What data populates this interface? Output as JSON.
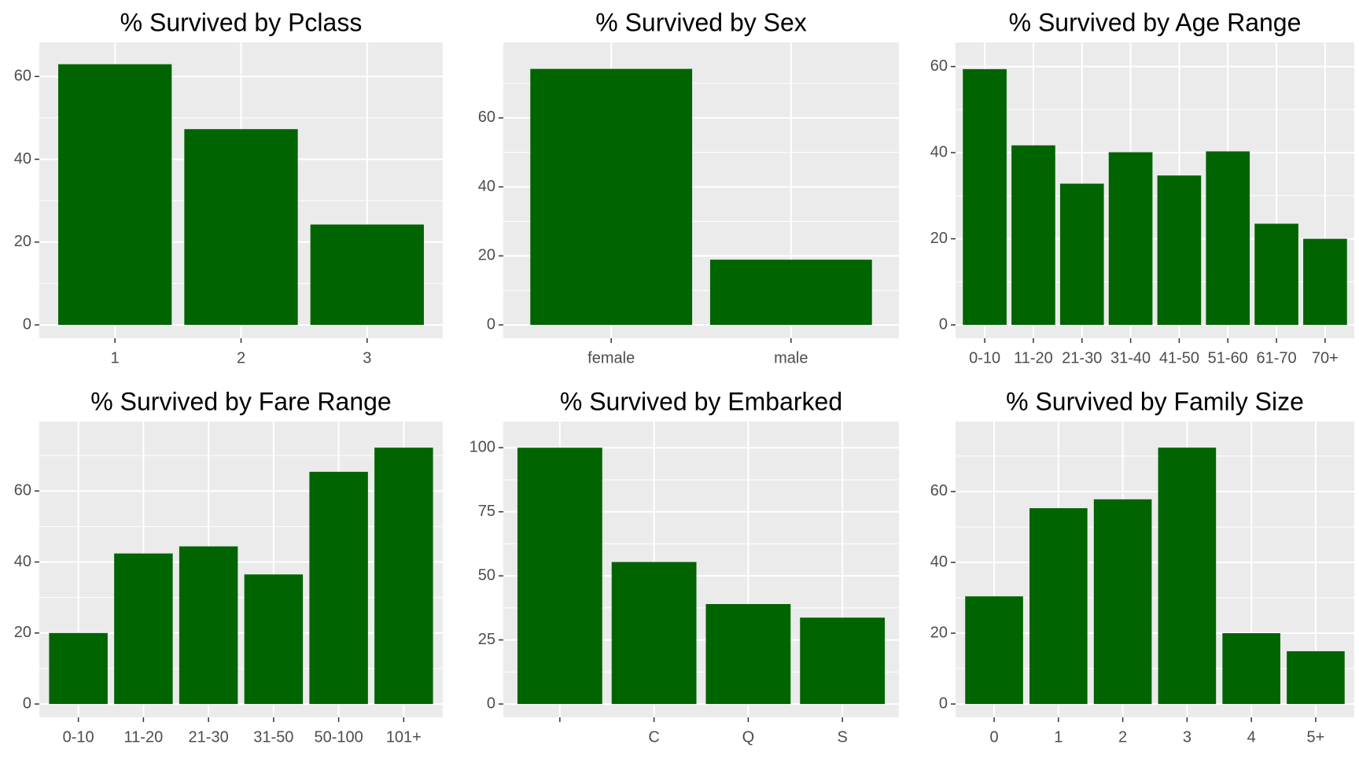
{
  "colors": {
    "bar": "#006400",
    "panel": "#ebebeb",
    "grid": "#ffffff",
    "text": "#000000",
    "tick": "#4d4d4d"
  },
  "chart_data": [
    {
      "type": "bar",
      "title": "% Survived by Pclass",
      "categories": [
        "1",
        "2",
        "3"
      ],
      "values": [
        62.96,
        47.28,
        24.24
      ],
      "ylim": [
        0,
        65
      ],
      "yticks": [
        0,
        20,
        40,
        60
      ],
      "grid": true
    },
    {
      "type": "bar",
      "title": "% Survived by Sex",
      "categories": [
        "female",
        "male"
      ],
      "values": [
        74.2,
        18.9
      ],
      "ylim": [
        0,
        78
      ],
      "yticks": [
        0,
        20,
        40,
        60
      ],
      "grid": true
    },
    {
      "type": "bar",
      "title": "% Survived by Age Range",
      "categories": [
        "0-10",
        "11-20",
        "21-30",
        "31-40",
        "41-50",
        "51-60",
        "61-70",
        "70+"
      ],
      "values": [
        59.4,
        41.7,
        32.8,
        40.1,
        34.7,
        40.3,
        23.5,
        20.0
      ],
      "ylim": [
        0,
        62.5
      ],
      "yticks": [
        0,
        20,
        40,
        60
      ],
      "grid": true
    },
    {
      "type": "bar",
      "title": "% Survived by Fare Range",
      "categories": [
        "0-10",
        "11-20",
        "21-30",
        "31-50",
        "50-100",
        "101+"
      ],
      "values": [
        20.0,
        42.4,
        44.4,
        36.5,
        65.4,
        72.2
      ],
      "ylim": [
        0,
        75.8
      ],
      "yticks": [
        0,
        20,
        40,
        60
      ],
      "grid": true
    },
    {
      "type": "bar",
      "title": "% Survived by Embarked",
      "categories": [
        "",
        "C",
        "Q",
        "S"
      ],
      "values": [
        100.0,
        55.4,
        39.0,
        33.7
      ],
      "ylim": [
        0,
        105
      ],
      "yticks": [
        0,
        25,
        50,
        75,
        100
      ],
      "grid": true
    },
    {
      "type": "bar",
      "title": "% Survived by Family Size",
      "categories": [
        "0",
        "1",
        "2",
        "3",
        "4",
        "5+"
      ],
      "values": [
        30.4,
        55.3,
        57.8,
        72.4,
        20.0,
        14.9
      ],
      "ylim": [
        0,
        76
      ],
      "yticks": [
        0,
        20,
        40,
        60
      ],
      "grid": true
    }
  ]
}
